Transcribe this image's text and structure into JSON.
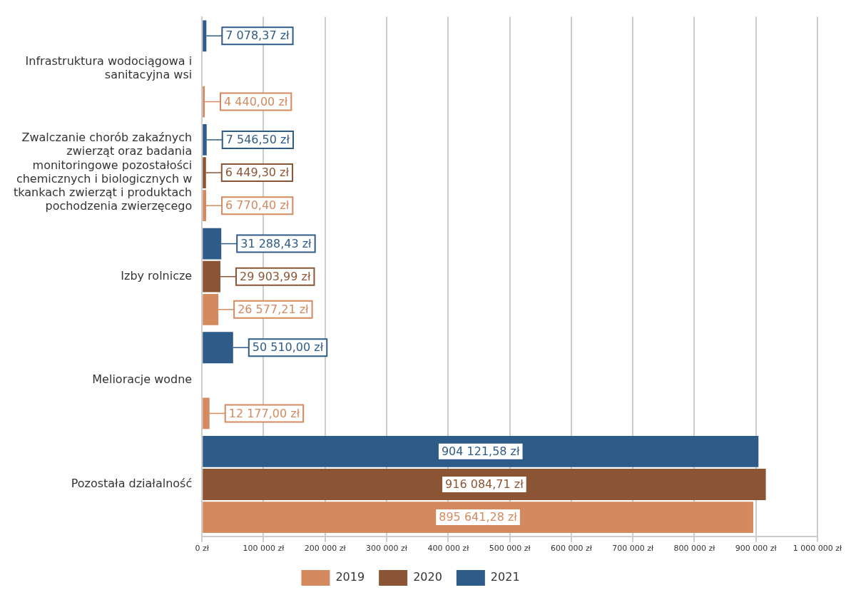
{
  "chart_data": {
    "type": "bar",
    "orientation": "horizontal",
    "categories": [
      "Infrastruktura wodociągowa i sanitacyjna wsi",
      "Zwalczanie chorób zakaźnych zwierząt oraz badania monitoringowe pozostałości chemicznych i biologicznych w tkankach zwierząt i produktach pochodzenia zwierzęcego",
      "Izby rolnicze",
      "Melioracje wodne",
      "Pozostała działalność"
    ],
    "series": [
      {
        "name": "2019",
        "color": "#d4895e",
        "values": [
          4440.0,
          6770.4,
          26577.21,
          12177.0,
          895641.28
        ],
        "value_labels": [
          "4 440,00 zł",
          "6 770,40 zł",
          "26 577,21 zł",
          "12 177,00 zł",
          "895 641,28 zł"
        ]
      },
      {
        "name": "2020",
        "color": "#8b5535",
        "values": [
          null,
          6449.3,
          29903.99,
          null,
          916084.71
        ],
        "value_labels": [
          null,
          "6 449,30 zł",
          "29 903,99 zł",
          null,
          "916 084,71 zł"
        ]
      },
      {
        "name": "2021",
        "color": "#2e5b88",
        "values": [
          7078.37,
          7546.5,
          31288.43,
          50510.0,
          904121.58
        ],
        "value_labels": [
          "7 078,37 zł",
          "7 546,50 zł",
          "31 288,43 zł",
          "50 510,00 zł",
          "904 121,58 zł"
        ]
      }
    ],
    "xlim": [
      0,
      1000000
    ],
    "xticks": [
      {
        "value": 0,
        "label": "0 zł"
      },
      {
        "value": 100000,
        "label": "100 000 zł"
      },
      {
        "value": 200000,
        "label": "200 000 zł"
      },
      {
        "value": 300000,
        "label": "300 000 zł"
      },
      {
        "value": 400000,
        "label": "400 000 zł"
      },
      {
        "value": 500000,
        "label": "500 000 zł"
      },
      {
        "value": 600000,
        "label": "600 000 zł"
      },
      {
        "value": 700000,
        "label": "700 000 zł"
      },
      {
        "value": 800000,
        "label": "800 000 zł"
      },
      {
        "value": 900000,
        "label": "900 000 zł"
      },
      {
        "value": 1000000,
        "label": "1 000 000 zł"
      }
    ],
    "grid": "x",
    "legend": "bottom"
  }
}
